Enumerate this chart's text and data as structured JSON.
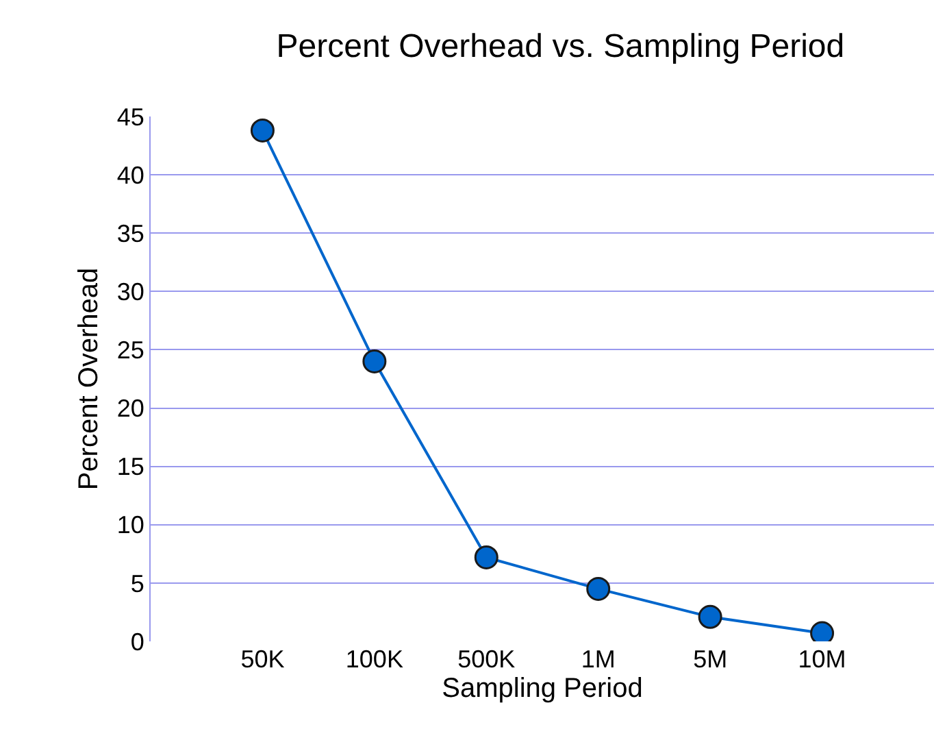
{
  "chart_data": {
    "type": "line",
    "title": "Percent Overhead vs. Sampling Period",
    "xlabel": "Sampling Period",
    "ylabel": "Percent Overhead",
    "categories": [
      "50K",
      "100K",
      "500K",
      "1M",
      "5M",
      "10M"
    ],
    "series": [
      {
        "color": "#0066cc",
        "values": [
          43.8,
          24.0,
          7.2,
          4.5,
          2.1,
          0.7
        ]
      }
    ],
    "ylim": [
      0,
      45
    ],
    "yticks": [
      0,
      5,
      10,
      15,
      20,
      25,
      30,
      35,
      40,
      45
    ],
    "grid": "y",
    "marker": "circle",
    "line_style": "solid"
  }
}
